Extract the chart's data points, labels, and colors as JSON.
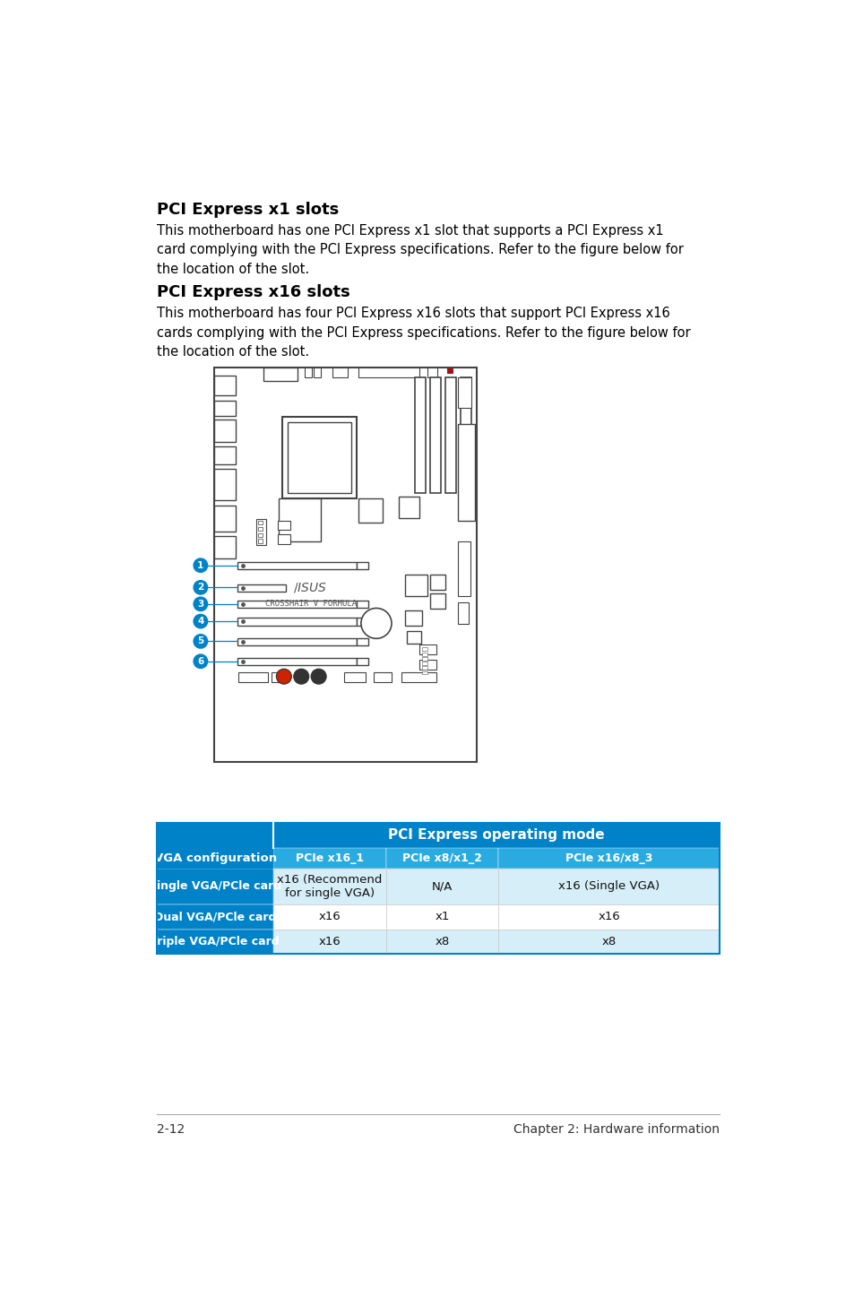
{
  "title1": "PCI Express x1 slots",
  "body1": "This motherboard has one PCI Express x1 slot that supports a PCI Express x1\ncard complying with the PCI Express specifications. Refer to the figure below for\nthe location of the slot.",
  "title2": "PCI Express x16 slots",
  "body2": "This motherboard has four PCI Express x16 slots that support PCI Express x16\ncards complying with the PCI Express specifications. Refer to the figure below for\nthe location of the slot.",
  "table_header_bg": "#0082C8",
  "table_subheader_bg": "#29ABE2",
  "table_row_bg_light": "#D6EEF8",
  "table_row_bg_white": "#FFFFFF",
  "table_header": "PCI Express operating mode",
  "table_col_label": "VGA configuration",
  "table_sub_cols": [
    "PCIe x16_1",
    "PCIe x8/x1_2",
    "PCIe x16/x8_3"
  ],
  "table_rows": [
    [
      "Single VGA/PCle card",
      "x16 (Recommend\nfor single VGA)",
      "N/A",
      "x16 (Single VGA)"
    ],
    [
      "Dual VGA/PCle card",
      "x16",
      "x1",
      "x16"
    ],
    [
      "Triple VGA/PCle card",
      "x16",
      "x8",
      "x8"
    ]
  ],
  "footer_left": "2-12",
  "footer_right": "Chapter 2: Hardware information",
  "bg_color": "#FFFFFF",
  "text_color": "#000000",
  "title_color": "#000000",
  "body_font_size": 10.5,
  "title_font_size": 13,
  "slot_circle_color": "#0082C8",
  "line_color": "#333333",
  "board_edge": "#444444"
}
